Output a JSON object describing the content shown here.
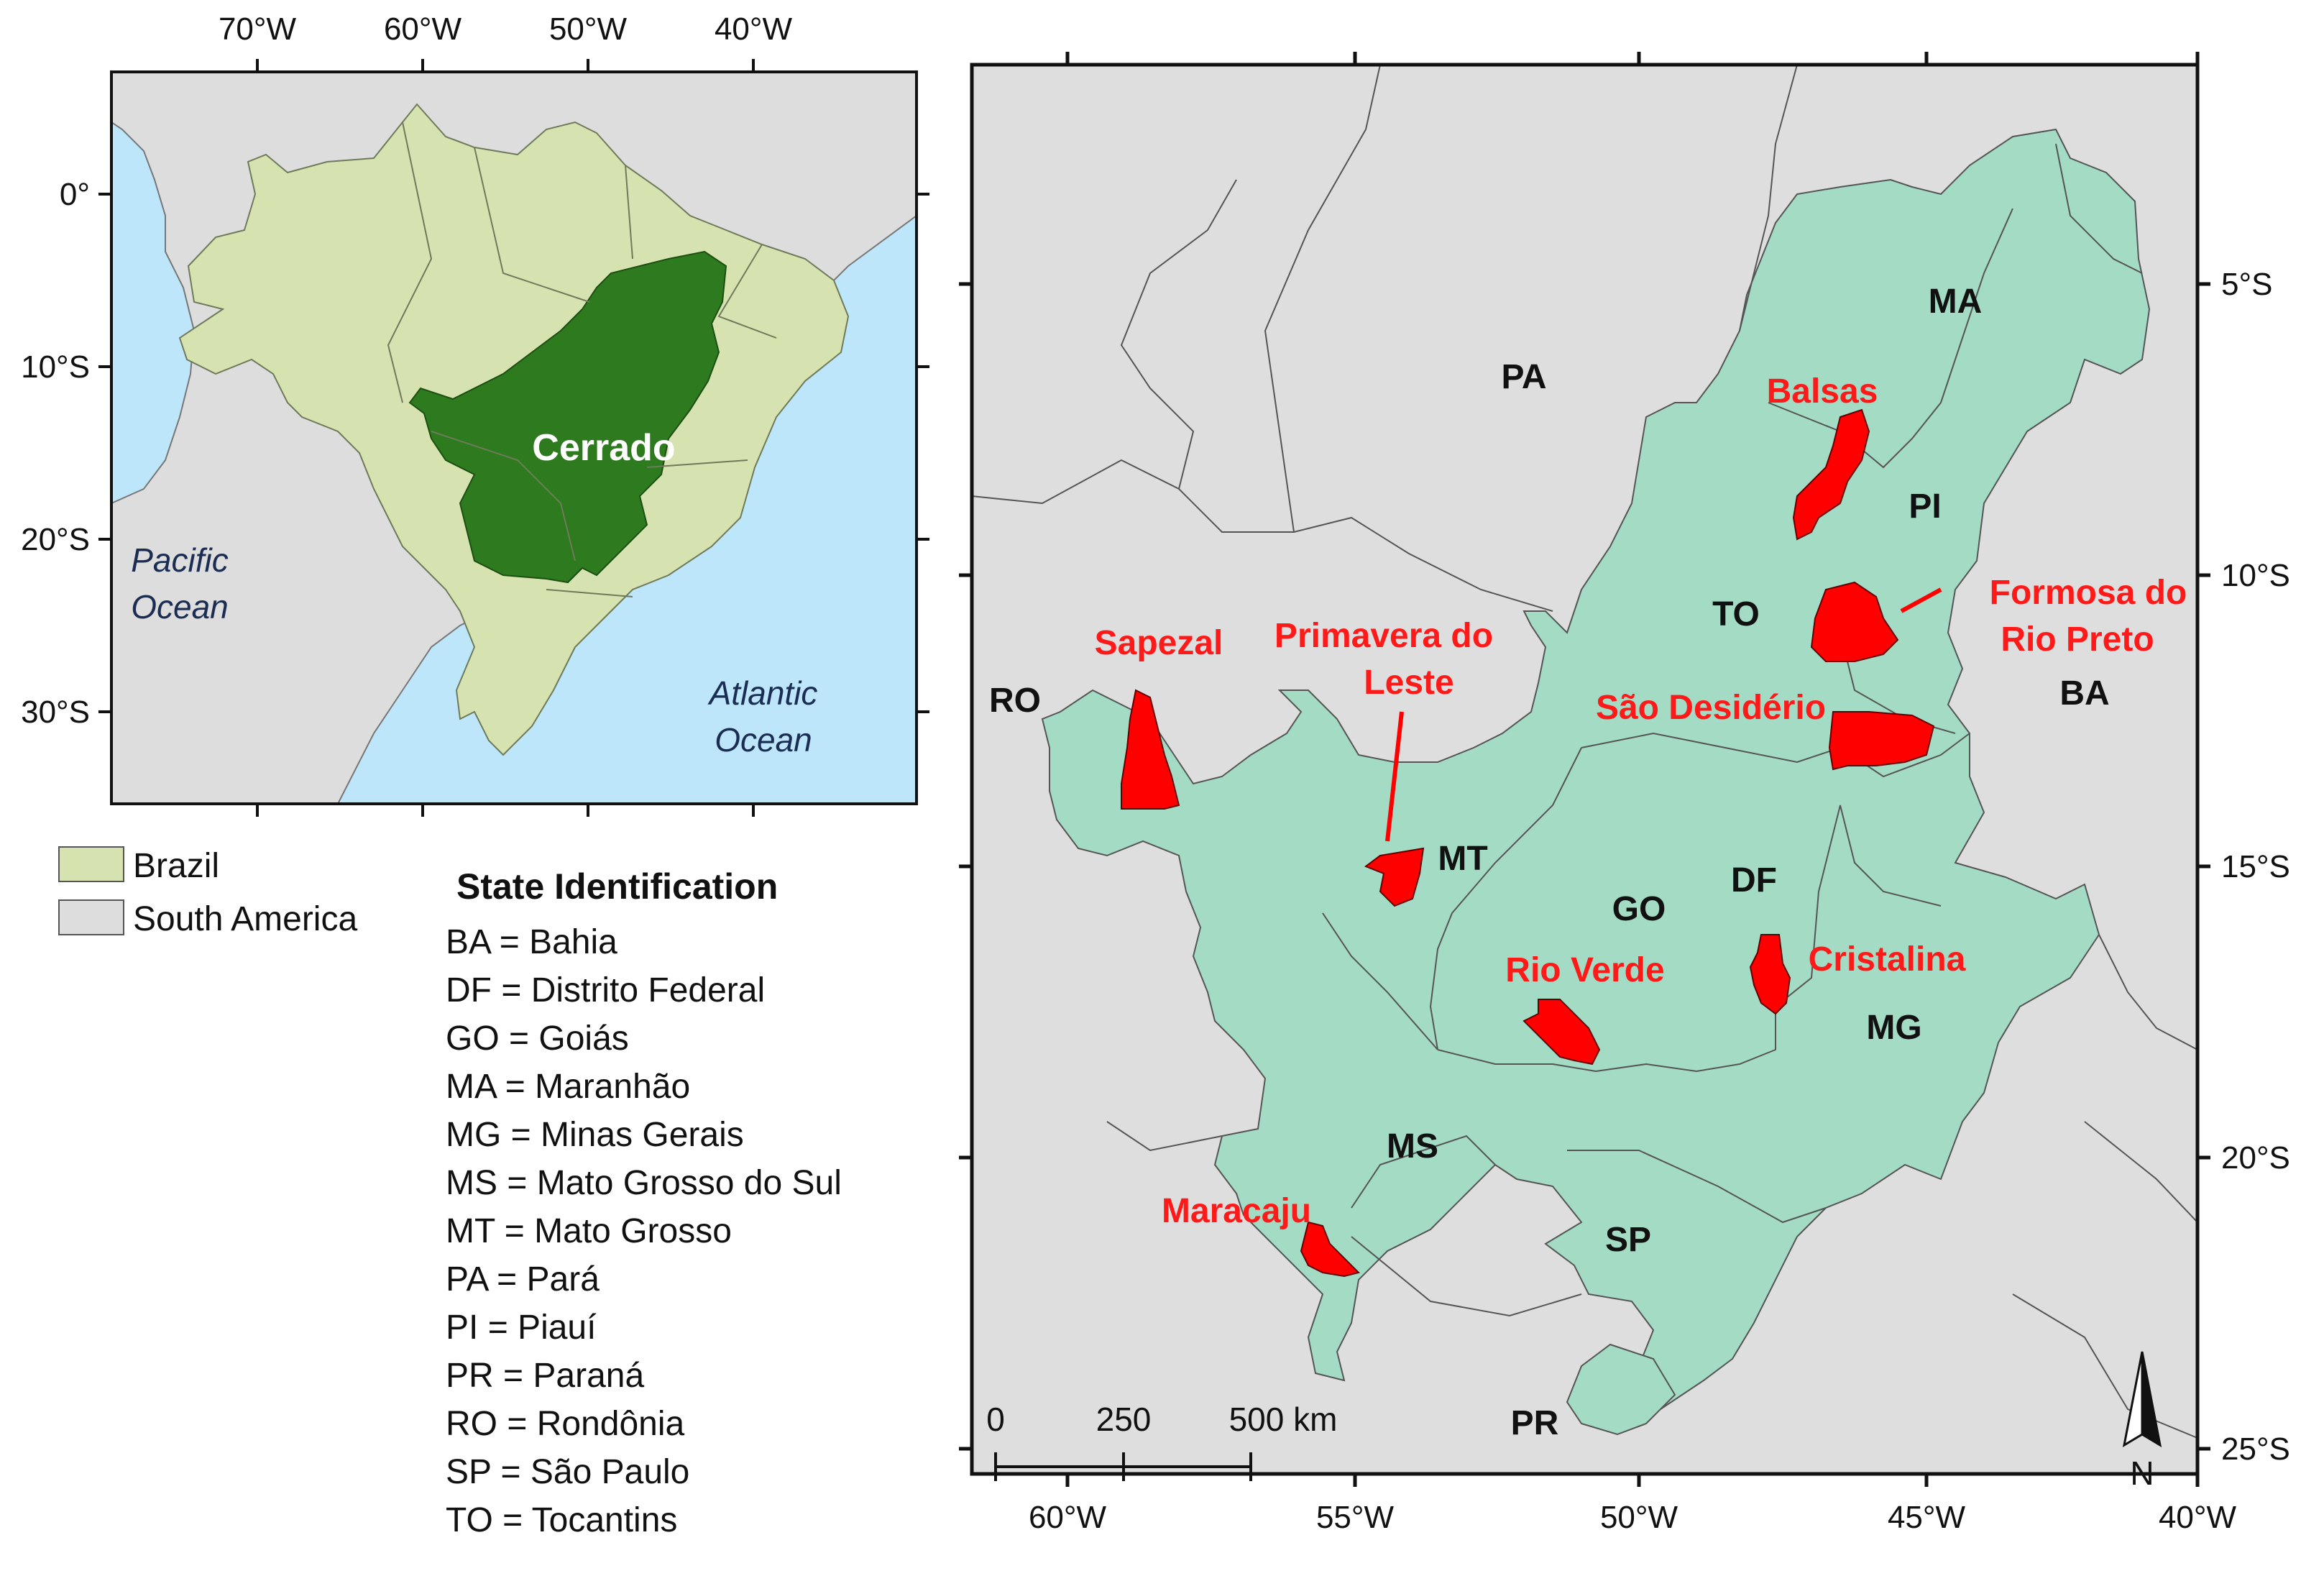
{
  "inset_map": {
    "top_ticks": [
      "70°W",
      "60°W",
      "50°W",
      "40°W"
    ],
    "left_ticks": [
      "0°",
      "10°S",
      "20°S",
      "30°S"
    ],
    "region_label": "Cerrado",
    "oceans": {
      "pacific_line1": "Pacific",
      "pacific_line2": "Ocean",
      "atlantic_line1": "Atlantic",
      "atlantic_line2": "Ocean"
    },
    "colors": {
      "ocean": "#bde6fb",
      "brazil": "#d6e3b1",
      "south_america": "#dddddd",
      "cerrado": "#2e7a1f"
    }
  },
  "legend": {
    "brazil": "Brazil",
    "south_america": "South America"
  },
  "state_identification": {
    "title": "State Identification",
    "items": [
      "BA = Bahia",
      "DF = Distrito Federal",
      "GO = Goiás",
      "MA = Maranhão",
      "MG = Minas Gerais",
      "MS = Mato Grosso do Sul",
      "MT = Mato Grosso",
      "PA = Pará",
      "PI = Piauí",
      "PR = Paraná",
      "RO = Rondônia",
      "SP = São Paulo",
      "TO = Tocantins"
    ]
  },
  "main_map": {
    "bottom_ticks": [
      "60°W",
      "55°W",
      "50°W",
      "45°W",
      "40°W"
    ],
    "right_ticks": [
      "5°S",
      "10°S",
      "15°S",
      "20°S",
      "25°S"
    ],
    "states": {
      "PA": "PA",
      "MA": "MA",
      "PI": "PI",
      "TO": "TO",
      "BA": "BA",
      "RO": "RO",
      "MT": "MT",
      "GO": "GO",
      "DF": "DF",
      "MG": "MG",
      "MS": "MS",
      "SP": "SP",
      "PR": "PR"
    },
    "municipalities": {
      "balsas": "Balsas",
      "formosa_line1": "Formosa do",
      "formosa_line2": "Rio Preto",
      "sao_desiderio": "São Desidério",
      "sapezal": "Sapezal",
      "primavera_line1": "Primavera do",
      "primavera_line2": "Leste",
      "rio_verde": "Rio Verde",
      "cristalina": "Cristalina",
      "maracaju": "Maracaju"
    },
    "scale_bar": {
      "labels": [
        "0",
        "250",
        "500 km"
      ]
    },
    "north_arrow": "N",
    "colors": {
      "cerrado": "#a3dbc5",
      "land": "#dedede",
      "municipality": "#ff0000"
    }
  }
}
